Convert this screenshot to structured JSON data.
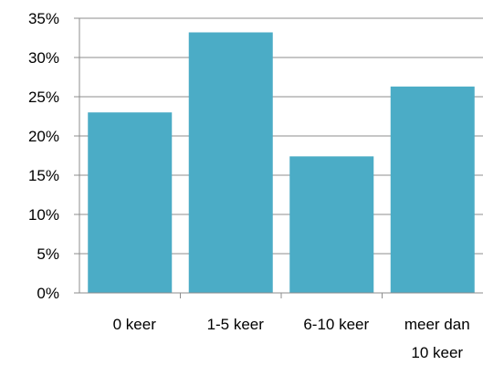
{
  "chart_data": {
    "type": "bar",
    "title": "",
    "xlabel": "",
    "ylabel": "",
    "categories": [
      [
        "0 keer"
      ],
      [
        "1-5 keer"
      ],
      [
        "6-10 keer"
      ],
      [
        "meer dan",
        "10 keer"
      ]
    ],
    "values": [
      23,
      33.2,
      17.4,
      26.3
    ],
    "ylim": [
      0,
      35
    ],
    "y_ticks": [
      0,
      5,
      10,
      15,
      20,
      25,
      30,
      35
    ],
    "y_tick_format": "percent",
    "grid": true,
    "legend": "none",
    "bar_color": "#4bacc6",
    "gridline_color": "#8c8c8c"
  }
}
